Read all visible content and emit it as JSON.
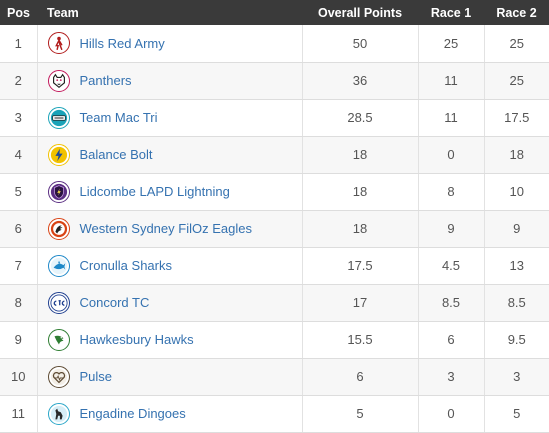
{
  "columns": {
    "pos": "Pos",
    "team": "Team",
    "overall": "Overall Points",
    "race1": "Race 1",
    "race2": "Race 2"
  },
  "rows": [
    {
      "pos": "1",
      "team": "Hills Red Army",
      "overall": "50",
      "race1": "25",
      "race2": "25",
      "logo_icon": "red-army-runner-icon",
      "logo_color": "#b11c1c"
    },
    {
      "pos": "2",
      "team": "Panthers",
      "overall": "36",
      "race1": "11",
      "race2": "25",
      "logo_icon": "panther-head-icon",
      "logo_color": "#c2185b"
    },
    {
      "pos": "3",
      "team": "Team Mac Tri",
      "overall": "28.5",
      "race1": "11",
      "race2": "17.5",
      "logo_icon": "mac-tri-badge-icon",
      "logo_color": "#1aa3b8"
    },
    {
      "pos": "4",
      "team": "Balance Bolt",
      "overall": "18",
      "race1": "0",
      "race2": "18",
      "logo_icon": "lightning-bolt-icon",
      "logo_color": "#f2c200"
    },
    {
      "pos": "5",
      "team": "Lidcombe LAPD Lightning",
      "overall": "18",
      "race1": "8",
      "race2": "10",
      "logo_icon": "lapd-shield-icon",
      "logo_color": "#5a2d82"
    },
    {
      "pos": "6",
      "team": "Western Sydney FilOz Eagles",
      "overall": "18",
      "race1": "9",
      "race2": "9",
      "logo_icon": "eagle-icon",
      "logo_color": "#d84315"
    },
    {
      "pos": "7",
      "team": "Cronulla Sharks",
      "overall": "17.5",
      "race1": "4.5",
      "race2": "13",
      "logo_icon": "shark-icon",
      "logo_color": "#1e88c8"
    },
    {
      "pos": "8",
      "team": "Concord TC",
      "overall": "17",
      "race1": "8.5",
      "race2": "8.5",
      "logo_icon": "ctc-monogram-icon",
      "logo_color": "#1f3f8f"
    },
    {
      "pos": "9",
      "team": "Hawkesbury Hawks",
      "overall": "15.5",
      "race1": "6",
      "race2": "9.5",
      "logo_icon": "hawk-icon",
      "logo_color": "#2e7d32"
    },
    {
      "pos": "10",
      "team": "Pulse",
      "overall": "6",
      "race1": "3",
      "race2": "3",
      "logo_icon": "heart-pulse-icon",
      "logo_color": "#5d4a33"
    },
    {
      "pos": "11",
      "team": "Engadine Dingoes",
      "overall": "5",
      "race1": "0",
      "race2": "5",
      "logo_icon": "dingo-icon",
      "logo_color": "#2aa6c8"
    }
  ]
}
